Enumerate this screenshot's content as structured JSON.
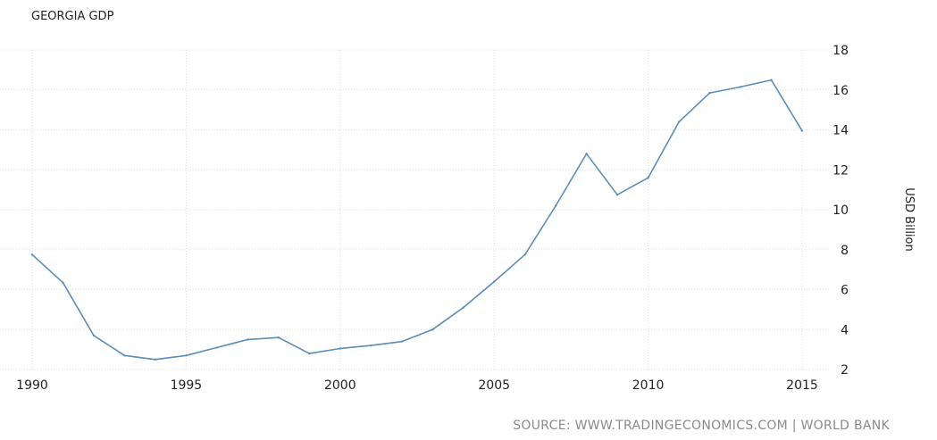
{
  "chart_data": {
    "type": "line",
    "title": "GEORGIA GDP",
    "xlabel": "",
    "ylabel": "USD Billion",
    "y_axis_side": "right",
    "xlim": [
      1990,
      2015
    ],
    "ylim": [
      2,
      18
    ],
    "x_ticks": [
      1990,
      1995,
      2000,
      2005,
      2010,
      2015
    ],
    "y_ticks": [
      2,
      4,
      6,
      8,
      10,
      12,
      14,
      16,
      18
    ],
    "grid": true,
    "legend": "none",
    "source": "SOURCE: WWW.TRADINGECONOMICS.COM | WORLD BANK",
    "colors": {
      "line": "#5b8db8",
      "grid": "#dedede",
      "text": "#222222",
      "source": "#8a8a8a"
    },
    "series": [
      {
        "x": [
          1990,
          1991,
          1992,
          1993,
          1994,
          1995,
          1996,
          1997,
          1998,
          1999,
          2000,
          2001,
          2002,
          2003,
          2004,
          2005,
          2006,
          2007,
          2008,
          2009,
          2010,
          2011,
          2012,
          2013,
          2014,
          2015
        ],
        "values": [
          7.75,
          6.35,
          3.7,
          2.7,
          2.5,
          2.7,
          3.1,
          3.5,
          3.6,
          2.8,
          3.05,
          3.2,
          3.4,
          4.0,
          5.1,
          6.4,
          7.75,
          10.2,
          12.8,
          10.75,
          11.6,
          14.4,
          15.85,
          16.15,
          16.5,
          13.95
        ]
      }
    ]
  }
}
